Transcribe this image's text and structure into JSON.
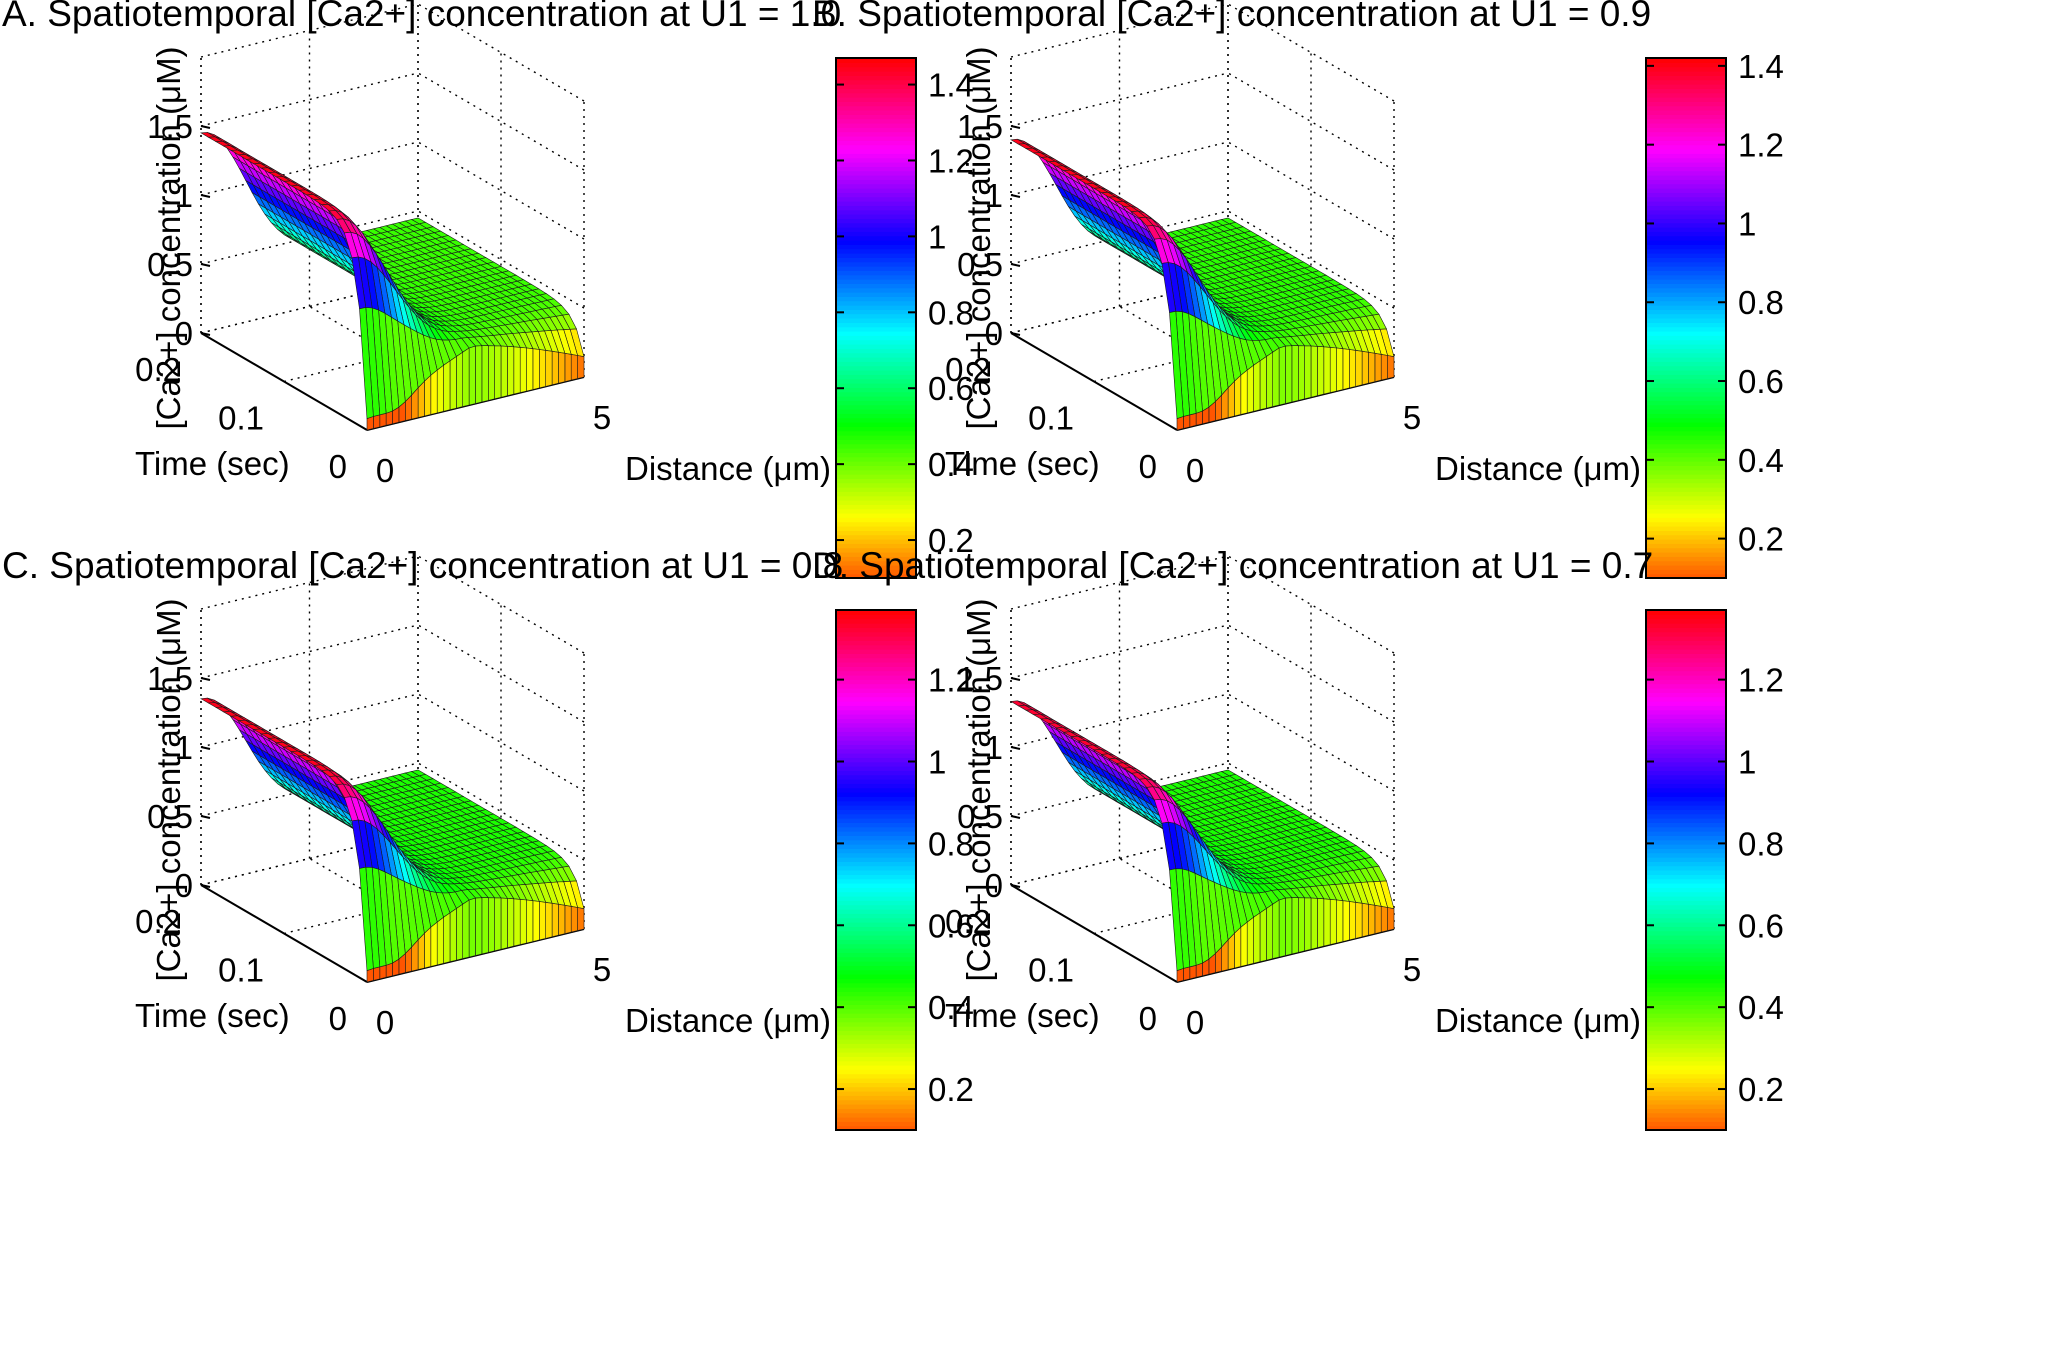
{
  "chart_data": [
    {
      "id": "A",
      "type": "surface3d",
      "title": "A. Spatiotemporal [Ca2+] concentration at U1 = 1.0",
      "u1": 1.0,
      "zlabel": "[Ca2+] concentration (μM)",
      "xlabel": "Distance (μm)",
      "ylabel": "Time (sec)",
      "zticks": [
        "0",
        "0.5",
        "1",
        "1.5"
      ],
      "timeticks": [
        "0",
        "0.1",
        "0.2"
      ],
      "distticks": [
        "0",
        "5"
      ],
      "zlim": [
        0,
        1.5
      ],
      "xlim": [
        0,
        5
      ],
      "tlim": [
        0,
        0.2
      ],
      "peak_at_x0": 1.45,
      "plateau": 0.45,
      "clim": [
        0.1,
        1.47
      ],
      "cbticks": [
        "0.2",
        "0.4",
        "0.6",
        "0.8",
        "1",
        "1.2",
        "1.4"
      ],
      "grid": true,
      "colormap": "hsv-reversed"
    },
    {
      "id": "B",
      "type": "surface3d",
      "title": "B. Spatiotemporal [Ca2+] concentration at U1 = 0.9",
      "u1": 0.9,
      "zlabel": "[Ca2+] concentration (μM)",
      "xlabel": "Distance (μm)",
      "ylabel": "Time (sec)",
      "zticks": [
        "0",
        "0.5",
        "1",
        "1.5"
      ],
      "timeticks": [
        "0",
        "0.1",
        "0.2"
      ],
      "distticks": [
        "0",
        "5"
      ],
      "zlim": [
        0,
        1.5
      ],
      "xlim": [
        0,
        5
      ],
      "tlim": [
        0,
        0.2
      ],
      "peak_at_x0": 1.4,
      "plateau": 0.45,
      "clim": [
        0.1,
        1.42
      ],
      "cbticks": [
        "0.2",
        "0.4",
        "0.6",
        "0.8",
        "1",
        "1.2",
        "1.4"
      ],
      "grid": true,
      "colormap": "hsv-reversed"
    },
    {
      "id": "C",
      "type": "surface3d",
      "title": "C. Spatiotemporal [Ca2+] concentration at U1 = 0.8",
      "u1": 0.8,
      "zlabel": "[Ca2+] concentration (μM)",
      "xlabel": "Distance (μm)",
      "ylabel": "Time (sec)",
      "zticks": [
        "0",
        "0.5",
        "1",
        "1.5"
      ],
      "timeticks": [
        "0",
        "0.1",
        "0.2"
      ],
      "distticks": [
        "0",
        "5"
      ],
      "zlim": [
        0,
        1.5
      ],
      "xlim": [
        0,
        5
      ],
      "tlim": [
        0,
        0.2
      ],
      "peak_at_x0": 1.35,
      "plateau": 0.45,
      "clim": [
        0.1,
        1.37
      ],
      "cbticks": [
        "0.2",
        "0.4",
        "0.6",
        "0.8",
        "1",
        "1.2"
      ],
      "grid": true,
      "colormap": "hsv-reversed"
    },
    {
      "id": "D",
      "type": "surface3d",
      "title": "D. Spatiotemporal [Ca2+] concentration at U1 = 0.7",
      "u1": 0.7,
      "zlabel": "[Ca2+] concentration (μM)",
      "xlabel": "Distance (μm)",
      "ylabel": "Time (sec)",
      "zticks": [
        "0",
        "0.5",
        "1",
        "1.5"
      ],
      "timeticks": [
        "0",
        "0.1",
        "0.2"
      ],
      "distticks": [
        "0",
        "5"
      ],
      "zlim": [
        0,
        1.5
      ],
      "xlim": [
        0,
        5
      ],
      "tlim": [
        0,
        0.2
      ],
      "peak_at_x0": 1.33,
      "plateau": 0.45,
      "clim": [
        0.1,
        1.37
      ],
      "cbticks": [
        "0.2",
        "0.4",
        "0.6",
        "0.8",
        "1",
        "1.2"
      ],
      "grid": true,
      "colormap": "hsv-reversed"
    }
  ]
}
